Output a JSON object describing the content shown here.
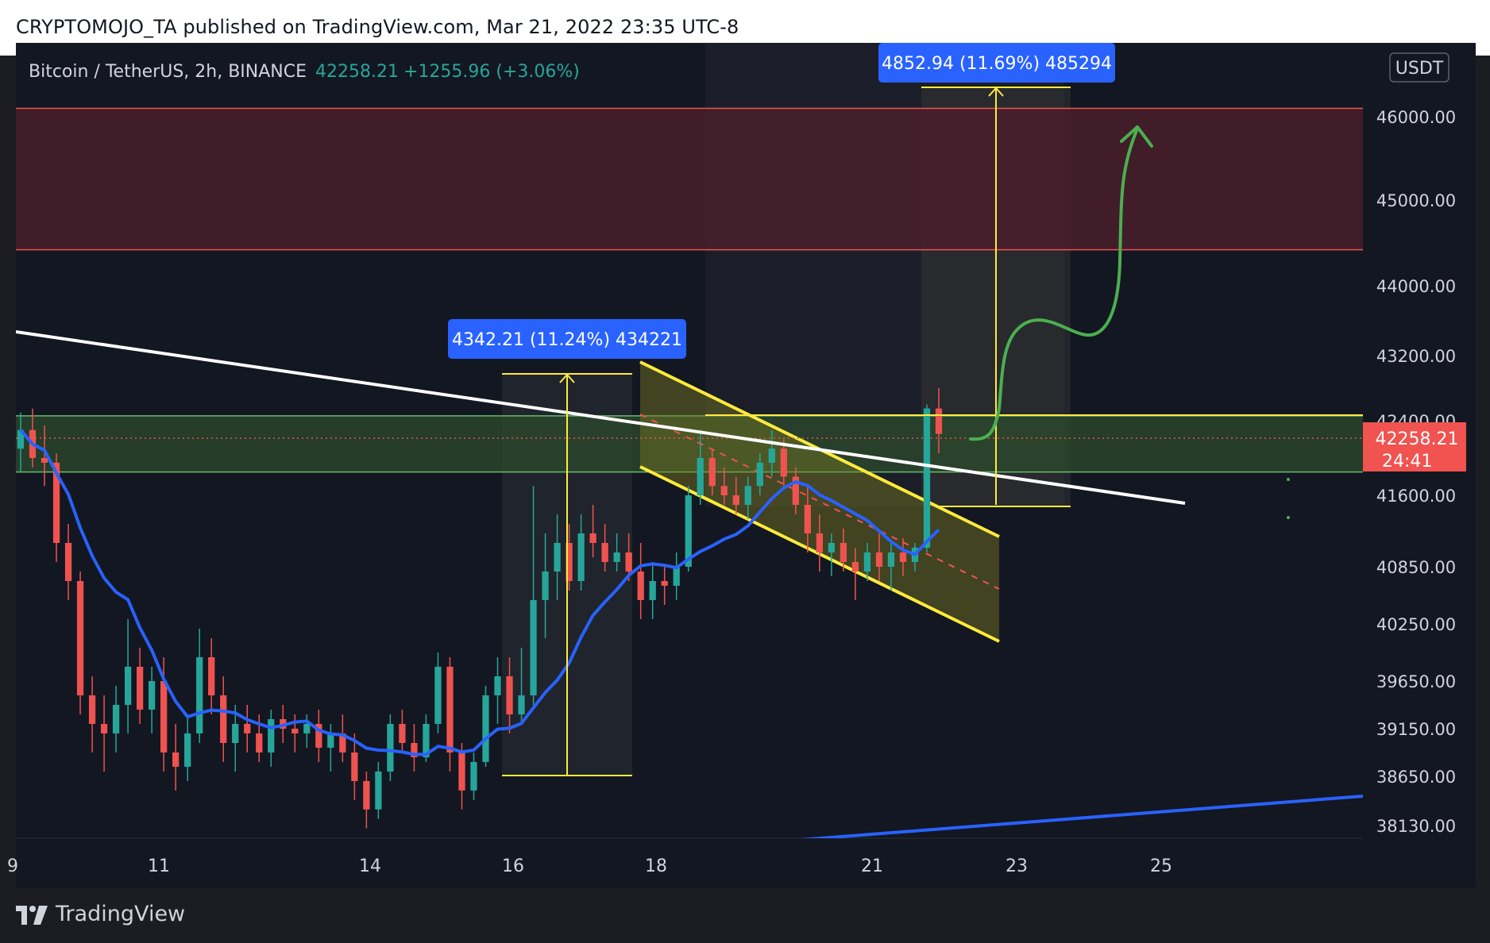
{
  "publisher_line": "CRYPTOMOJO_TA published on TradingView.com, Mar 21, 2022 23:35 UTC-8",
  "brand": "TradingView",
  "colors": {
    "background": "#131722",
    "up": "#26a69a",
    "down": "#ef5350",
    "resistance_zone": "#4a1f2c",
    "support_zone": "#2c4b2c",
    "ma_line": "#2962ff",
    "trendline": "#ffffff",
    "channel": "#ffeb3b",
    "projection_arrow": "#4caf50",
    "measure_label": "#2962ff",
    "price_tag": "#f05350"
  },
  "chart_data": {
    "type": "candlestick",
    "symbol_info": {
      "name": "Bitcoin / TetherUS, 2h, BINANCE",
      "price": "42258.21",
      "change": "+1255.96 (+3.06%)"
    },
    "currency_badge": "USDT",
    "y_axis_ticks": [
      "46000.00",
      "45000.00",
      "44000.00",
      "43200.00",
      "42400.00",
      "41600.00",
      "40850.00",
      "40250.00",
      "39650.00",
      "39150.00",
      "38650.00",
      "38130.00"
    ],
    "x_axis_ticks": [
      "9",
      "11",
      "14",
      "16",
      "18",
      "21",
      "23",
      "25"
    ],
    "current_price_label": {
      "price": "42258.21",
      "countdown": "24:41"
    },
    "measurements": [
      {
        "label": "4342.21 (11.24%) 434221",
        "from": 38700,
        "to": 43030
      },
      {
        "label": "4852.94 (11.69%) 485294",
        "from": 41650,
        "to": 46500
      }
    ],
    "zones": [
      {
        "name": "resistance",
        "from": 44420,
        "to": 46100
      },
      {
        "name": "support",
        "from": 41850,
        "to": 42460
      }
    ],
    "ohlc_series": [
      [
        42100,
        42500,
        41850,
        42300
      ],
      [
        42300,
        42550,
        41900,
        42000
      ],
      [
        42000,
        42350,
        41700,
        41950
      ],
      [
        41950,
        42050,
        40900,
        41100
      ],
      [
        41100,
        41300,
        40500,
        40700
      ],
      [
        40700,
        40800,
        39300,
        39500
      ],
      [
        39500,
        39700,
        38900,
        39200
      ],
      [
        39200,
        39500,
        38700,
        39100
      ],
      [
        39100,
        39600,
        38900,
        39400
      ],
      [
        39400,
        40300,
        39100,
        39800
      ],
      [
        39800,
        40000,
        39200,
        39350
      ],
      [
        39350,
        39800,
        39100,
        39650
      ],
      [
        39650,
        39900,
        38700,
        38900
      ],
      [
        38900,
        39200,
        38500,
        38750
      ],
      [
        38750,
        39300,
        38600,
        39100
      ],
      [
        39100,
        40200,
        39000,
        39900
      ],
      [
        39900,
        40100,
        39300,
        39500
      ],
      [
        39500,
        39700,
        38800,
        39000
      ],
      [
        39000,
        39400,
        38700,
        39200
      ],
      [
        39200,
        39400,
        38900,
        39100
      ],
      [
        39100,
        39300,
        38800,
        38900
      ],
      [
        38900,
        39350,
        38750,
        39250
      ],
      [
        39250,
        39400,
        39000,
        39150
      ],
      [
        39150,
        39300,
        38900,
        39100
      ],
      [
        39100,
        39300,
        38950,
        39200
      ],
      [
        39200,
        39350,
        38800,
        38950
      ],
      [
        38950,
        39200,
        38700,
        39100
      ],
      [
        39100,
        39300,
        38800,
        38900
      ],
      [
        38900,
        39100,
        38400,
        38600
      ],
      [
        38600,
        38700,
        38100,
        38300
      ],
      [
        38300,
        38800,
        38200,
        38700
      ],
      [
        38700,
        39300,
        38600,
        39200
      ],
      [
        39200,
        39350,
        38900,
        39000
      ],
      [
        39000,
        39200,
        38700,
        38850
      ],
      [
        38850,
        39300,
        38800,
        39200
      ],
      [
        39200,
        39950,
        39100,
        39800
      ],
      [
        39800,
        39900,
        38700,
        38900
      ],
      [
        38900,
        39000,
        38300,
        38500
      ],
      [
        38500,
        38900,
        38400,
        38800
      ],
      [
        38800,
        39600,
        38750,
        39500
      ],
      [
        39500,
        39900,
        39200,
        39700
      ],
      [
        39700,
        39900,
        39100,
        39300
      ],
      [
        39300,
        40000,
        39200,
        39500
      ],
      [
        39500,
        41700,
        39400,
        40500
      ],
      [
        40500,
        41200,
        40100,
        40800
      ],
      [
        40800,
        41400,
        40500,
        41100
      ],
      [
        41100,
        41300,
        40600,
        40700
      ],
      [
        40700,
        41400,
        40600,
        41200
      ],
      [
        41200,
        41500,
        40950,
        41100
      ],
      [
        41100,
        41300,
        40800,
        40900
      ],
      [
        40900,
        41200,
        40800,
        41000
      ],
      [
        41000,
        41200,
        40700,
        40800
      ],
      [
        40800,
        41100,
        40300,
        40500
      ],
      [
        40500,
        40900,
        40300,
        40700
      ],
      [
        40700,
        40850,
        40450,
        40650
      ],
      [
        40650,
        41000,
        40500,
        40850
      ],
      [
        40850,
        41700,
        40800,
        41600
      ],
      [
        41600,
        42300,
        41500,
        42000
      ],
      [
        42000,
        42100,
        41600,
        41700
      ],
      [
        41700,
        41900,
        41500,
        41600
      ],
      [
        41600,
        41800,
        41400,
        41500
      ],
      [
        41500,
        41800,
        41350,
        41700
      ],
      [
        41700,
        42050,
        41600,
        41950
      ],
      [
        41950,
        42300,
        41800,
        42100
      ],
      [
        42100,
        42200,
        41700,
        41800
      ],
      [
        41800,
        41900,
        41400,
        41500
      ],
      [
        41500,
        41700,
        41000,
        41200
      ],
      [
        41200,
        41400,
        40800,
        41000
      ],
      [
        41000,
        41200,
        40750,
        41100
      ],
      [
        41100,
        41250,
        40800,
        40900
      ],
      [
        40900,
        41050,
        40500,
        40800
      ],
      [
        40800,
        41100,
        40700,
        41000
      ],
      [
        41000,
        41200,
        40700,
        40850
      ],
      [
        40850,
        41100,
        40600,
        41000
      ],
      [
        41000,
        41150,
        40750,
        40900
      ],
      [
        40900,
        41100,
        40800,
        41050
      ],
      [
        41050,
        42600,
        41000,
        42550
      ],
      [
        42550,
        42800,
        42050,
        42258.21
      ]
    ]
  }
}
